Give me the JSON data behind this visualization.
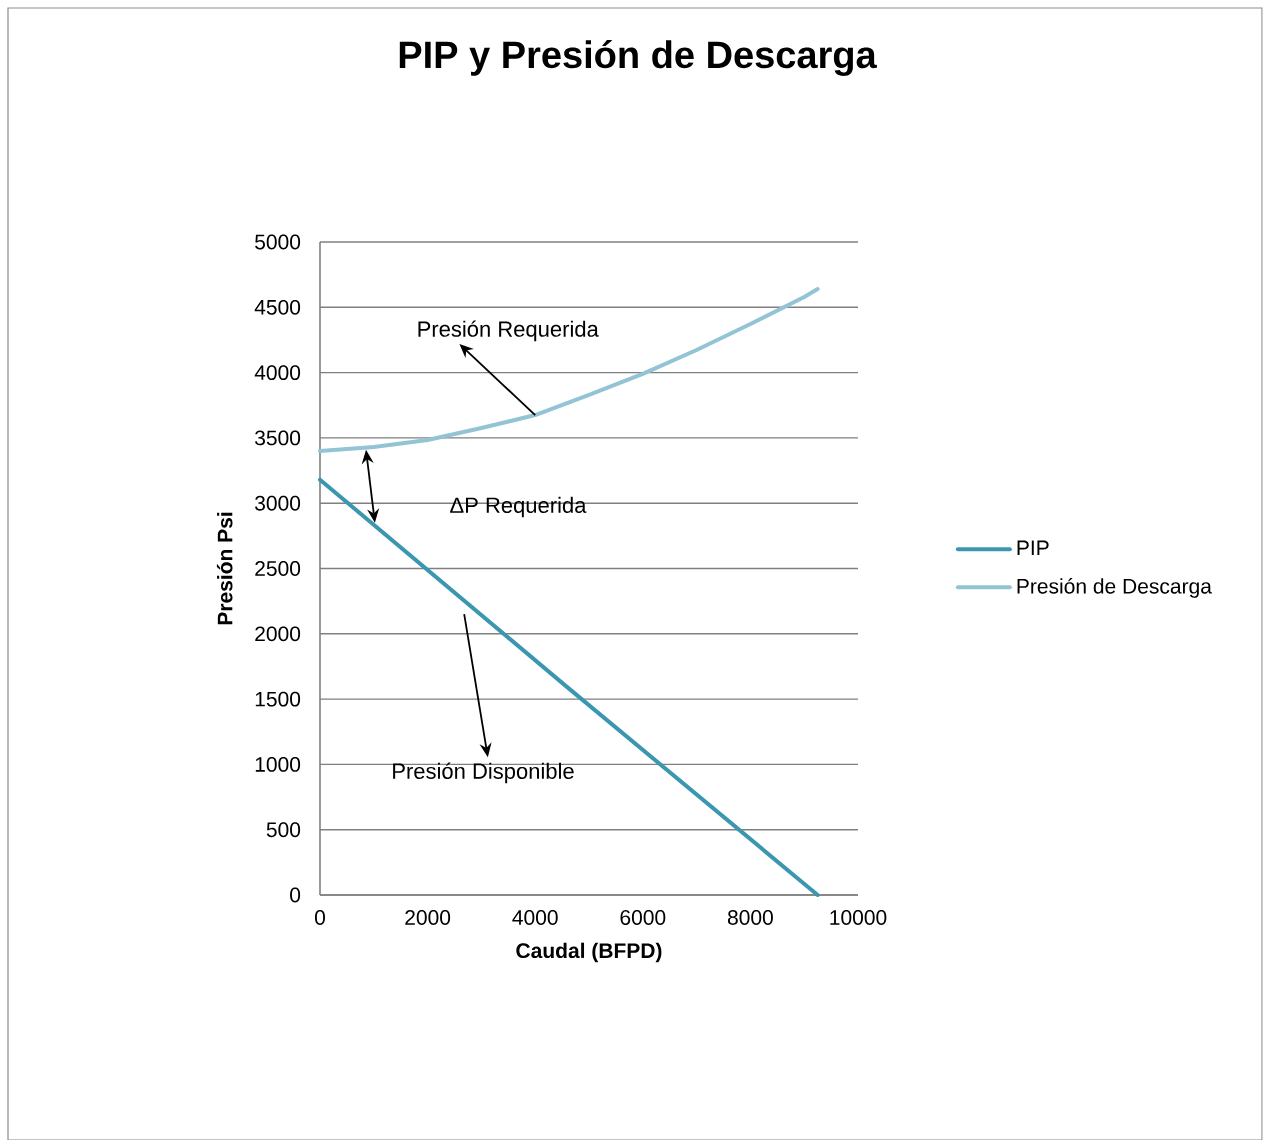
{
  "chart_data": {
    "type": "line",
    "title": "PIP y Presión de Descarga",
    "xlabel": "Caudal (BFPD)",
    "ylabel": "Presión Psi",
    "xlim": [
      0,
      10000
    ],
    "xticks": [
      0,
      2000,
      4000,
      6000,
      8000,
      10000
    ],
    "ylim": [
      0,
      5000
    ],
    "yticks": [
      0,
      500,
      1000,
      1500,
      2000,
      2500,
      3000,
      3500,
      4000,
      4500,
      5000
    ],
    "grid": "y",
    "legend": "right",
    "series": [
      {
        "name": "PIP",
        "color": "#3b97b0",
        "x": [
          0,
          4600,
          9250
        ],
        "values": [
          3180,
          1590,
          0
        ]
      },
      {
        "name": "Presión de Descarga",
        "color": "#93c4d6",
        "x": [
          0,
          1000,
          2000,
          3000,
          4000,
          5000,
          6000,
          7000,
          8000,
          9000,
          9250
        ],
        "values": [
          3400,
          3430,
          3484,
          3576,
          3675,
          3830,
          3990,
          4173,
          4372,
          4579,
          4640
        ]
      }
    ],
    "annotations": [
      {
        "text": "Presión Requerida",
        "x": 4000,
        "y": 3675
      },
      "ΔP Requerida",
      "Presión Disponible"
    ]
  }
}
